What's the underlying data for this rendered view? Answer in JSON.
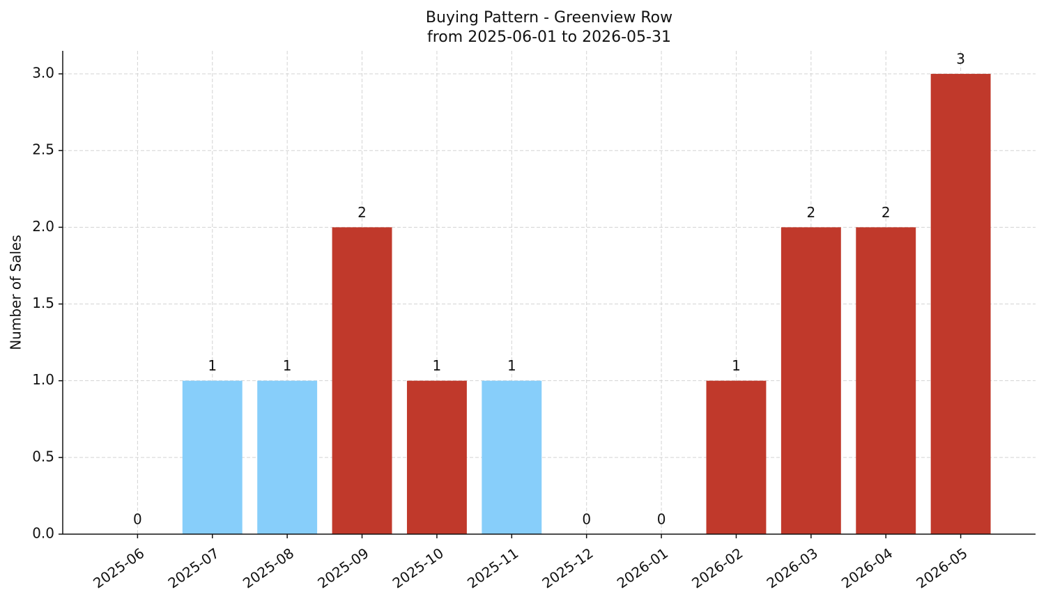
{
  "chart_data": {
    "type": "bar",
    "title": "Buying Pattern - Greenview Row",
    "subtitle": "from 2025-06-01 to 2026-05-31",
    "y_label": "Number of Sales",
    "categories": [
      "2025-06",
      "2025-07",
      "2025-08",
      "2025-09",
      "2025-10",
      "2025-11",
      "2025-12",
      "2026-01",
      "2026-02",
      "2026-03",
      "2026-04",
      "2026-05"
    ],
    "values": [
      0,
      1,
      1,
      2,
      1,
      1,
      0,
      0,
      1,
      2,
      2,
      3
    ],
    "colors": [
      "#c0392b",
      "#87cefa",
      "#87cefa",
      "#c0392b",
      "#c0392b",
      "#87cefa",
      "#c0392b",
      "#c0392b",
      "#c0392b",
      "#c0392b",
      "#c0392b",
      "#c0392b"
    ],
    "ylim": [
      0,
      3.15
    ],
    "yticks": [
      {
        "value": 0,
        "label": "0.0"
      },
      0.5,
      {
        "value": 1,
        "label": "1.0"
      },
      1.5,
      {
        "value": 2,
        "label": "2.0"
      },
      2.5,
      {
        "value": 3,
        "label": "3.0"
      }
    ],
    "grid": true
  }
}
